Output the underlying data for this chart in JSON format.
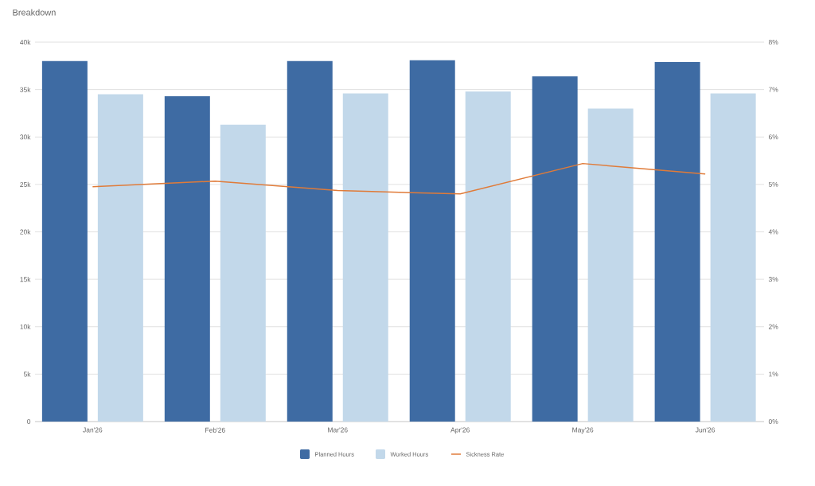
{
  "chart_data": {
    "type": "bar",
    "title": "Breakdown",
    "categories": [
      "Jan'26",
      "Feb'26",
      "Mar'26",
      "Apr'26",
      "May'26",
      "Jun'26"
    ],
    "series": [
      {
        "name": "Planned Hours",
        "color": "#3e6ba3",
        "values": [
          38000,
          34300,
          38000,
          38100,
          36400,
          37900
        ]
      },
      {
        "name": "Worked Hours",
        "color": "#c2d8ea",
        "values": [
          34500,
          31300,
          34600,
          34800,
          33000,
          34600
        ]
      },
      {
        "name": "Sickness Rate",
        "type": "line",
        "axis": "y2",
        "color": "#e07b39",
        "values": [
          4.95,
          5.07,
          4.87,
          4.8,
          5.44,
          5.22
        ]
      }
    ],
    "ylim": [
      0,
      40000
    ],
    "yticks": [
      0,
      {
        "value": 5000,
        "label": "5k"
      },
      {
        "value": 10000,
        "label": "10k"
      },
      {
        "value": 15000,
        "label": "15k"
      },
      {
        "value": 20000,
        "label": "20k"
      },
      {
        "value": 25000,
        "label": "25k"
      },
      {
        "value": 30000,
        "label": "30k"
      },
      {
        "value": 35000,
        "label": "35k"
      },
      {
        "value": 40000,
        "label": "40k"
      }
    ],
    "y2lim": [
      0,
      8
    ],
    "y2ticks": [
      {
        "value": 0,
        "label": "0%"
      },
      {
        "value": 1,
        "label": "1%"
      },
      {
        "value": 2,
        "label": "2%"
      },
      {
        "value": 3,
        "label": "3%"
      },
      {
        "value": 4,
        "label": "4%"
      },
      {
        "value": 5,
        "label": "5%"
      },
      {
        "value": 6,
        "label": "6%"
      },
      {
        "value": 7,
        "label": "7%"
      },
      {
        "value": 8,
        "label": "8%"
      }
    ],
    "grid": "y",
    "legend": "bottom",
    "marker": "none",
    "line_style": "solid"
  }
}
